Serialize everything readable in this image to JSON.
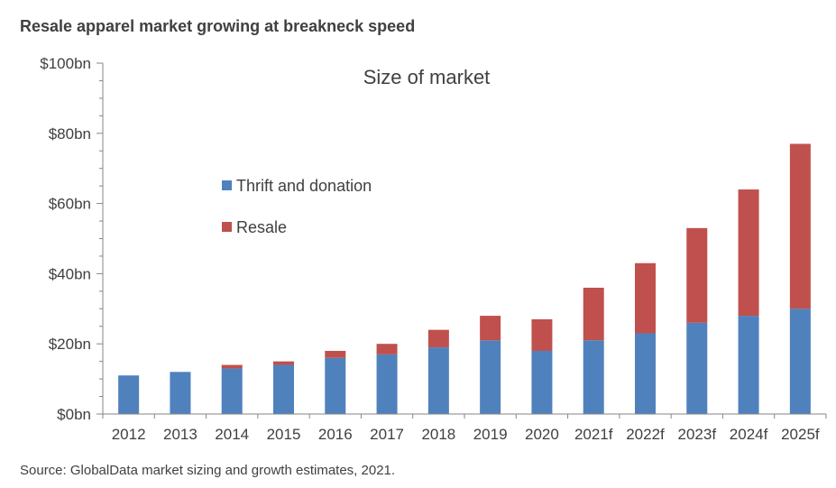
{
  "header": {
    "title": "Resale apparel market growing at breakneck speed"
  },
  "footer": {
    "source": "Source: GlobalData market sizing and growth estimates, 2021."
  },
  "chart_data": {
    "type": "bar",
    "stacked": true,
    "title": "Size of market",
    "categories": [
      "2012",
      "2013",
      "2014",
      "2015",
      "2016",
      "2017",
      "2018",
      "2019",
      "2020",
      "2021f",
      "2022f",
      "2023f",
      "2024f",
      "2025f"
    ],
    "series": [
      {
        "name": "Thrift and donation",
        "color": "#4F81BD",
        "values": [
          11,
          12,
          13,
          14,
          16,
          17,
          19,
          21,
          18,
          21,
          23,
          26,
          28,
          30
        ]
      },
      {
        "name": "Resale",
        "color": "#C0504D",
        "values": [
          0,
          0,
          1,
          1,
          2,
          3,
          5,
          7,
          9,
          15,
          20,
          27,
          36,
          47
        ]
      }
    ],
    "ylim": [
      0,
      100
    ],
    "yticks": [
      0,
      20,
      40,
      60,
      80,
      100
    ],
    "ytick_labels": [
      "$0bn",
      "$20bn",
      "$40bn",
      "$60bn",
      "$80bn",
      "$100bn"
    ],
    "xlabel": "",
    "ylabel": "",
    "grid": false,
    "legend_position": "upper-left inside plot"
  }
}
